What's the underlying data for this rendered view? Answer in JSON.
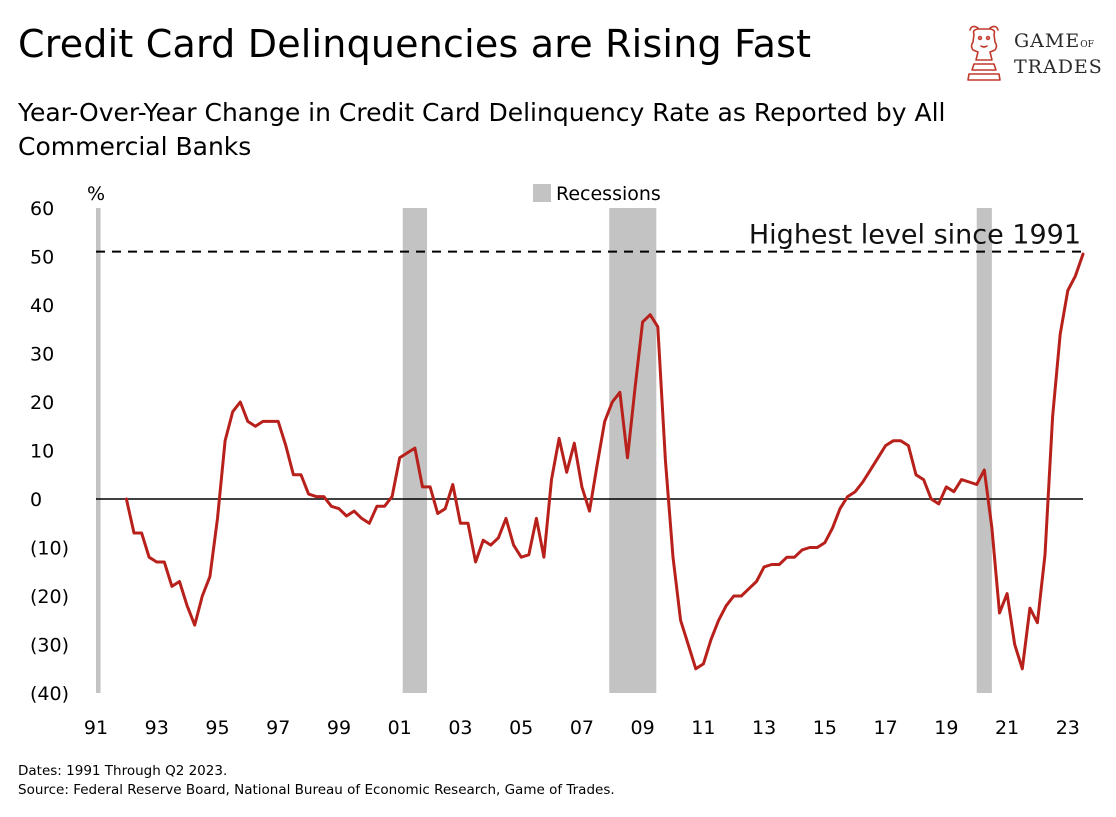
{
  "title": "Credit Card Delinquencies are Rising Fast",
  "subtitle": "Year-Over-Year Change in Credit Card Delinquency Rate as Reported by All Commercial Banks",
  "logo": {
    "line1": "GAME",
    "of": "OF",
    "line2": "TRADES"
  },
  "footer": {
    "dates": "Dates: 1991 Through Q2 2023.",
    "source": "Source: Federal Reserve Board, National Bureau of Economic Research, Game of Trades."
  },
  "colors": {
    "line": "#b8211b",
    "recession": "#c3c3c3",
    "logo": "#c0392b"
  },
  "chart_data": {
    "type": "line",
    "ylabel": "%",
    "ylim": [
      -40,
      60
    ],
    "yticks": [
      60,
      50,
      40,
      30,
      20,
      10,
      0,
      -10,
      -20,
      -30,
      -40
    ],
    "ytick_labels": [
      "60",
      "50",
      "40",
      "30",
      "20",
      "10",
      "0",
      "(10)",
      "(20)",
      "(30)",
      "(40)"
    ],
    "xlim": [
      1991.0,
      2023.5
    ],
    "xticks": [
      1991,
      1993,
      1995,
      1997,
      1999,
      2001,
      2003,
      2005,
      2007,
      2009,
      2011,
      2013,
      2015,
      2017,
      2019,
      2021,
      2023
    ],
    "xtick_labels": [
      "91",
      "93",
      "95",
      "97",
      "99",
      "01",
      "03",
      "05",
      "07",
      "09",
      "11",
      "13",
      "15",
      "17",
      "19",
      "21",
      "23"
    ],
    "legend": {
      "label": "Recessions",
      "position": "top-center"
    },
    "recessions": [
      [
        1991.0,
        1991.15
      ],
      [
        2001.1,
        2001.9
      ],
      [
        2007.9,
        2009.45
      ],
      [
        2020.0,
        2020.5
      ]
    ],
    "reference_line": {
      "y": 51,
      "label": "Highest level since 1991"
    },
    "series": [
      {
        "x": [
          1992.0,
          1992.25,
          1992.5,
          1992.75,
          1993.0,
          1993.25,
          1993.5,
          1993.75,
          1994.0,
          1994.25,
          1994.5,
          1994.75,
          1995.0,
          1995.25,
          1995.5,
          1995.75,
          1996.0,
          1996.25,
          1996.5,
          1996.75,
          1997.0,
          1997.25,
          1997.5,
          1997.75,
          1998.0,
          1998.25,
          1998.5,
          1998.75,
          1999.0,
          1999.25,
          1999.5,
          1999.75,
          2000.0,
          2000.25,
          2000.5,
          2000.75,
          2001.0,
          2001.25,
          2001.5,
          2001.75,
          2002.0,
          2002.25,
          2002.5,
          2002.75,
          2003.0,
          2003.25,
          2003.5,
          2003.75,
          2004.0,
          2004.25,
          2004.5,
          2004.75,
          2005.0,
          2005.25,
          2005.5,
          2005.75,
          2006.0,
          2006.25,
          2006.5,
          2006.75,
          2007.0,
          2007.25,
          2007.5,
          2007.75,
          2008.0,
          2008.25,
          2008.5,
          2008.75,
          2009.0,
          2009.25,
          2009.5,
          2009.75,
          2010.0,
          2010.25,
          2010.5,
          2010.75,
          2011.0,
          2011.25,
          2011.5,
          2011.75,
          2012.0,
          2012.25,
          2012.5,
          2012.75,
          2013.0,
          2013.25,
          2013.5,
          2013.75,
          2014.0,
          2014.25,
          2014.5,
          2014.75,
          2015.0,
          2015.25,
          2015.5,
          2015.75,
          2016.0,
          2016.25,
          2016.5,
          2016.75,
          2017.0,
          2017.25,
          2017.5,
          2017.75,
          2018.0,
          2018.25,
          2018.5,
          2018.75,
          2019.0,
          2019.25,
          2019.5,
          2019.75,
          2020.0,
          2020.25,
          2020.5,
          2020.75,
          2021.0,
          2021.25,
          2021.5,
          2021.75,
          2022.0,
          2022.25,
          2022.5,
          2022.75,
          2023.0,
          2023.25,
          2023.5
        ],
        "values": [
          0,
          -7,
          -7,
          -12,
          -13,
          -13,
          -18,
          -17,
          -22,
          -26,
          -20,
          -16,
          -4,
          12,
          18,
          20,
          16,
          15,
          16,
          16,
          16,
          11,
          5,
          5,
          1,
          0.5,
          0.5,
          -1.5,
          -2,
          -3.5,
          -2.5,
          -4,
          -5,
          -1.5,
          -1.5,
          0.5,
          8.5,
          9.5,
          10.5,
          2.5,
          2.5,
          -3,
          -2,
          3,
          -5,
          -5,
          -13,
          -8.5,
          -9.5,
          -8,
          -4,
          -9.5,
          -12,
          -11.5,
          -4,
          -12,
          4,
          12.5,
          5.5,
          11.5,
          2.5,
          -2.5,
          7,
          16,
          20,
          22,
          8.5,
          23,
          36.5,
          38,
          35.5,
          8,
          -12,
          -25,
          -30,
          -35,
          -34,
          -29,
          -25,
          -22,
          -20,
          -20,
          -18.5,
          -17,
          -14,
          -13.5,
          -13.5,
          -12,
          -12,
          -10.5,
          -10,
          -10,
          -9,
          -6,
          -2,
          0.5,
          1.5,
          3.5,
          6,
          8.5,
          11,
          12,
          12,
          11,
          5,
          4,
          0,
          -1,
          2.5,
          1.5,
          4,
          3.5,
          3,
          6,
          -6,
          -23.5,
          -19.5,
          -30,
          -35,
          -22.5,
          -25.5,
          -11.5,
          17,
          34,
          43,
          46,
          50.5
        ]
      }
    ]
  }
}
